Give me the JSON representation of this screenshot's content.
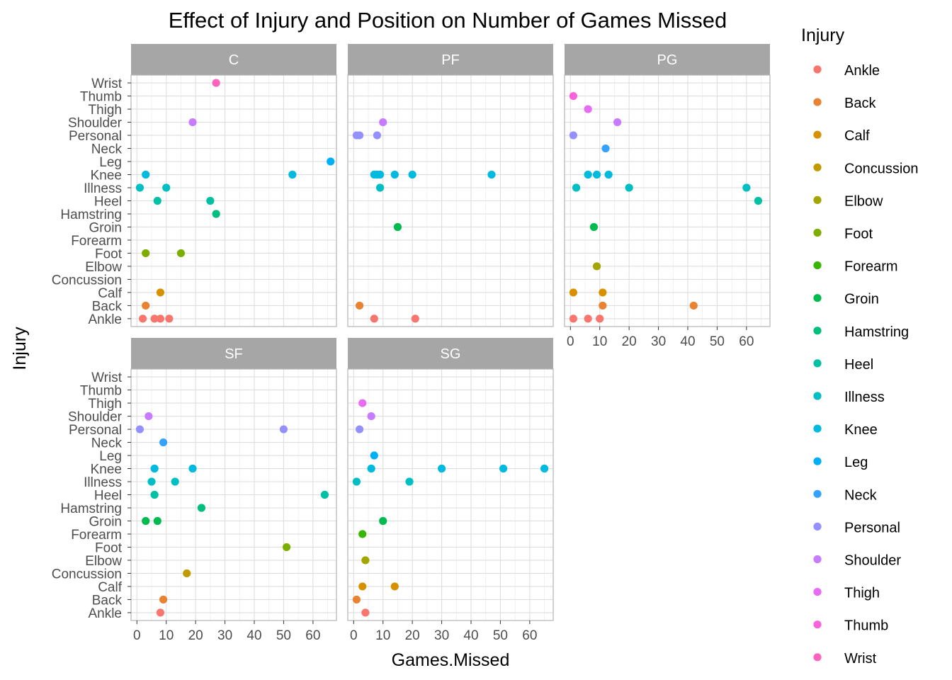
{
  "chart_data": {
    "type": "scatter",
    "title": "Effect of Injury and Position on Number of Games Missed",
    "xlabel": "Games.Missed",
    "ylabel": "Injury",
    "xlim": [
      -2,
      68
    ],
    "xticks": [
      0,
      10,
      20,
      30,
      40,
      50,
      60
    ],
    "categories": [
      "Ankle",
      "Back",
      "Calf",
      "Concussion",
      "Elbow",
      "Foot",
      "Forearm",
      "Groin",
      "Hamstring",
      "Heel",
      "Illness",
      "Knee",
      "Leg",
      "Neck",
      "Personal",
      "Shoulder",
      "Thigh",
      "Thumb",
      "Wrist"
    ],
    "legend": {
      "title": "Injury",
      "position": "right"
    },
    "colors": {
      "Ankle": "#F8766D",
      "Back": "#EA8331",
      "Calf": "#D89000",
      "Concussion": "#C09B00",
      "Elbow": "#A3A500",
      "Foot": "#7CAE00",
      "Forearm": "#39B600",
      "Groin": "#00BB4E",
      "Hamstring": "#00BF7D",
      "Heel": "#00C1A3",
      "Illness": "#00BFC4",
      "Knee": "#00BAE0",
      "Leg": "#00B0F6",
      "Neck": "#35A2FF",
      "Personal": "#9590FF",
      "Shoulder": "#C77CFF",
      "Thigh": "#E76BF3",
      "Thumb": "#FA62DB",
      "Wrist": "#FF62BC"
    },
    "panels": [
      {
        "name": "C",
        "points": [
          {
            "injury": "Wrist",
            "x": 27
          },
          {
            "injury": "Shoulder",
            "x": 19
          },
          {
            "injury": "Leg",
            "x": 66
          },
          {
            "injury": "Knee",
            "x": 3
          },
          {
            "injury": "Knee",
            "x": 53
          },
          {
            "injury": "Illness",
            "x": 1
          },
          {
            "injury": "Illness",
            "x": 10
          },
          {
            "injury": "Heel",
            "x": 7
          },
          {
            "injury": "Heel",
            "x": 25
          },
          {
            "injury": "Hamstring",
            "x": 27
          },
          {
            "injury": "Foot",
            "x": 3
          },
          {
            "injury": "Foot",
            "x": 15
          },
          {
            "injury": "Calf",
            "x": 8
          },
          {
            "injury": "Back",
            "x": 3
          },
          {
            "injury": "Ankle",
            "x": 2
          },
          {
            "injury": "Ankle",
            "x": 6
          },
          {
            "injury": "Ankle",
            "x": 8
          },
          {
            "injury": "Ankle",
            "x": 11
          }
        ]
      },
      {
        "name": "PF",
        "points": [
          {
            "injury": "Shoulder",
            "x": 10
          },
          {
            "injury": "Personal",
            "x": 1
          },
          {
            "injury": "Personal",
            "x": 2
          },
          {
            "injury": "Personal",
            "x": 8
          },
          {
            "injury": "Knee",
            "x": 7
          },
          {
            "injury": "Knee",
            "x": 8
          },
          {
            "injury": "Knee",
            "x": 9
          },
          {
            "injury": "Knee",
            "x": 14
          },
          {
            "injury": "Knee",
            "x": 20
          },
          {
            "injury": "Knee",
            "x": 47
          },
          {
            "injury": "Illness",
            "x": 9
          },
          {
            "injury": "Groin",
            "x": 15
          },
          {
            "injury": "Back",
            "x": 2
          },
          {
            "injury": "Ankle",
            "x": 7
          },
          {
            "injury": "Ankle",
            "x": 21
          }
        ]
      },
      {
        "name": "PG",
        "points": [
          {
            "injury": "Thumb",
            "x": 1
          },
          {
            "injury": "Thigh",
            "x": 6
          },
          {
            "injury": "Shoulder",
            "x": 16
          },
          {
            "injury": "Personal",
            "x": 1
          },
          {
            "injury": "Neck",
            "x": 12
          },
          {
            "injury": "Knee",
            "x": 6
          },
          {
            "injury": "Knee",
            "x": 9
          },
          {
            "injury": "Knee",
            "x": 13
          },
          {
            "injury": "Illness",
            "x": 2
          },
          {
            "injury": "Illness",
            "x": 20
          },
          {
            "injury": "Illness",
            "x": 60
          },
          {
            "injury": "Heel",
            "x": 64
          },
          {
            "injury": "Groin",
            "x": 8
          },
          {
            "injury": "Elbow",
            "x": 9
          },
          {
            "injury": "Calf",
            "x": 1
          },
          {
            "injury": "Calf",
            "x": 11
          },
          {
            "injury": "Back",
            "x": 11
          },
          {
            "injury": "Back",
            "x": 42
          },
          {
            "injury": "Ankle",
            "x": 1
          },
          {
            "injury": "Ankle",
            "x": 6
          },
          {
            "injury": "Ankle",
            "x": 10
          }
        ]
      },
      {
        "name": "SF",
        "points": [
          {
            "injury": "Shoulder",
            "x": 4
          },
          {
            "injury": "Personal",
            "x": 1
          },
          {
            "injury": "Personal",
            "x": 50
          },
          {
            "injury": "Neck",
            "x": 9
          },
          {
            "injury": "Knee",
            "x": 6
          },
          {
            "injury": "Knee",
            "x": 19
          },
          {
            "injury": "Illness",
            "x": 5
          },
          {
            "injury": "Illness",
            "x": 13
          },
          {
            "injury": "Heel",
            "x": 6
          },
          {
            "injury": "Heel",
            "x": 64
          },
          {
            "injury": "Hamstring",
            "x": 22
          },
          {
            "injury": "Groin",
            "x": 3
          },
          {
            "injury": "Groin",
            "x": 7
          },
          {
            "injury": "Foot",
            "x": 51
          },
          {
            "injury": "Concussion",
            "x": 17
          },
          {
            "injury": "Back",
            "x": 9
          },
          {
            "injury": "Ankle",
            "x": 8
          }
        ]
      },
      {
        "name": "SG",
        "points": [
          {
            "injury": "Thigh",
            "x": 3
          },
          {
            "injury": "Shoulder",
            "x": 6
          },
          {
            "injury": "Personal",
            "x": 2
          },
          {
            "injury": "Leg",
            "x": 7
          },
          {
            "injury": "Knee",
            "x": 6
          },
          {
            "injury": "Knee",
            "x": 30
          },
          {
            "injury": "Knee",
            "x": 51
          },
          {
            "injury": "Knee",
            "x": 65
          },
          {
            "injury": "Illness",
            "x": 1
          },
          {
            "injury": "Illness",
            "x": 19
          },
          {
            "injury": "Groin",
            "x": 10
          },
          {
            "injury": "Forearm",
            "x": 3
          },
          {
            "injury": "Elbow",
            "x": 4
          },
          {
            "injury": "Calf",
            "x": 3
          },
          {
            "injury": "Calf",
            "x": 14
          },
          {
            "injury": "Back",
            "x": 1
          },
          {
            "injury": "Ankle",
            "x": 4
          }
        ]
      }
    ]
  }
}
